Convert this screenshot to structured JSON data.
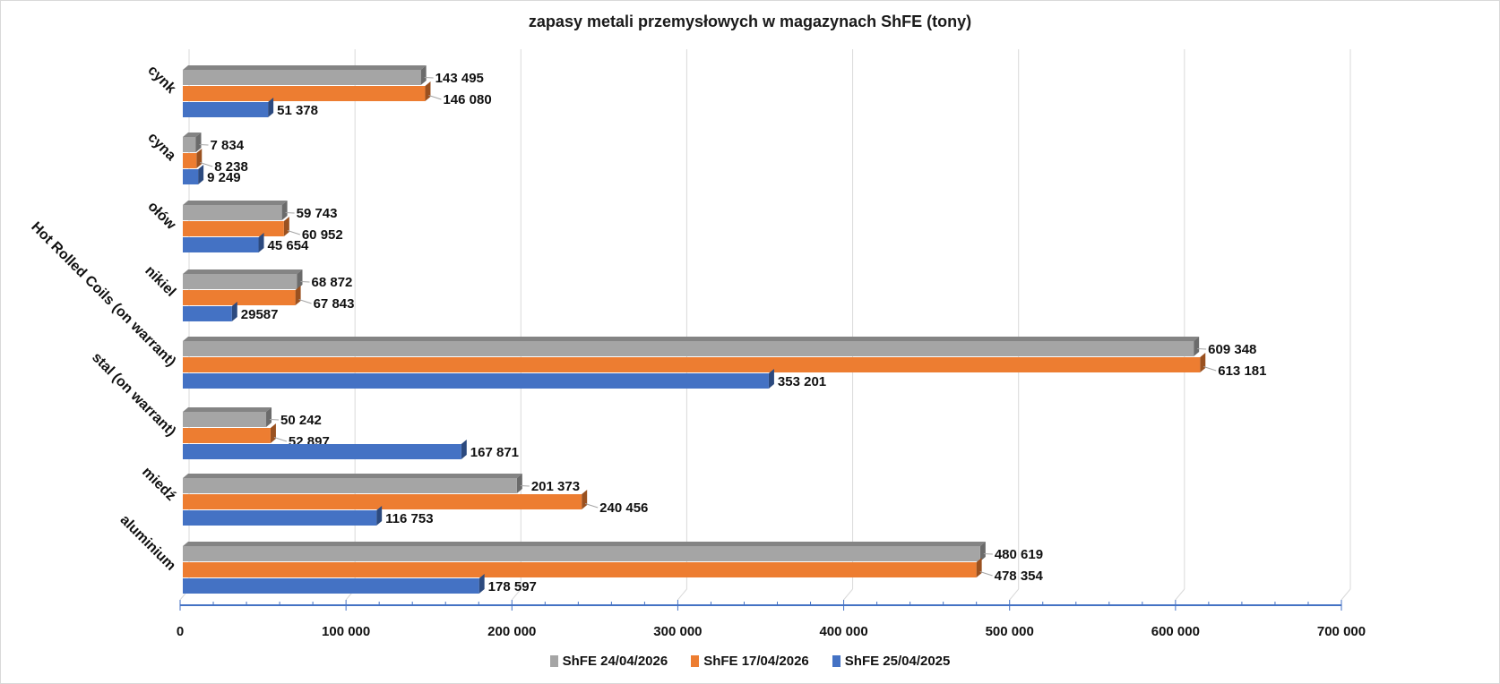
{
  "chart_data": {
    "type": "bar",
    "orientation": "horizontal",
    "style": "3d-clustered",
    "title": "zapasy metali przemysłowych w magazynach ShFE (tony)",
    "xlabel": "",
    "ylabel": "",
    "xlim": [
      0,
      700000
    ],
    "x_ticks": [
      0,
      100000,
      200000,
      300000,
      400000,
      500000,
      600000,
      700000
    ],
    "x_tick_labels": [
      "0",
      "100 000",
      "200 000",
      "300 000",
      "400 000",
      "500 000",
      "600 000",
      "700 000"
    ],
    "grid": true,
    "legend_position": "bottom",
    "categories": [
      "cynk",
      "cyna",
      "ołów",
      "nikiel",
      "Hot Rolled Coils (on warrant)",
      "stal (on warrant)",
      "miedź",
      "aluminium"
    ],
    "series": [
      {
        "name": "ShFE 24/04/2026",
        "color": "#a5a5a5",
        "values": [
          143495,
          7834,
          59743,
          68872,
          609348,
          50242,
          201373,
          480619
        ],
        "labels": [
          "143 495",
          "7 834",
          "59 743",
          "68 872",
          "609 348",
          "50 242",
          "201 373",
          "480 619"
        ]
      },
      {
        "name": "ShFE 17/04/2026",
        "color": "#ed7d31",
        "values": [
          146080,
          8238,
          60952,
          67843,
          613181,
          52897,
          240456,
          478354
        ],
        "labels": [
          "146 080",
          "8 238",
          "60 952",
          "67 843",
          "613 181",
          "52 897",
          "240 456",
          "478 354"
        ]
      },
      {
        "name": "ShFE 25/04/2025",
        "color": "#4472c4",
        "values": [
          51378,
          9249,
          45654,
          29587,
          353201,
          167871,
          116753,
          178597
        ],
        "labels": [
          "51 378",
          "9 249",
          "45 654",
          "29587",
          "353 201",
          "167 871",
          "116 753",
          "178 597"
        ]
      }
    ]
  },
  "colors": {
    "gridline": "#d9d9d9",
    "axis": "#4472c4",
    "text": "#111111"
  }
}
